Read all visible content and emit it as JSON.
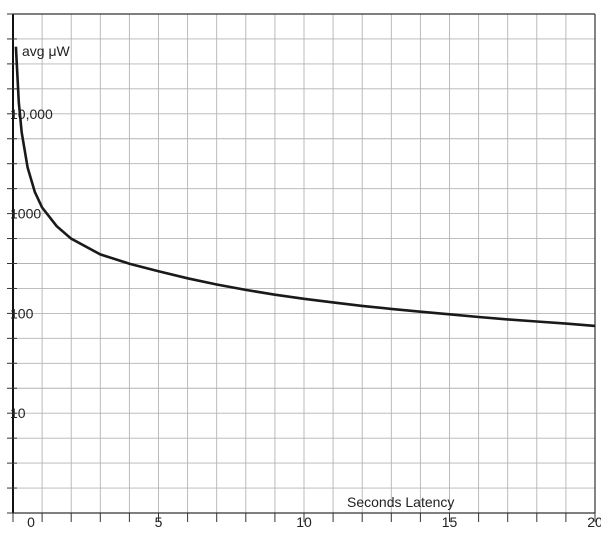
{
  "chart_data": {
    "type": "line",
    "title": "",
    "xlabel": "Seconds Latency",
    "ylabel": "avg μW",
    "xlim": [
      0,
      20
    ],
    "ylim": [
      1,
      100000
    ],
    "yscale": "log",
    "grid": true,
    "x_ticks": [
      0,
      5,
      10,
      15,
      20
    ],
    "x_tick_labels": [
      "0",
      "5",
      "10",
      "15",
      "20"
    ],
    "y_ticks": [
      10,
      100,
      1000,
      10000
    ],
    "y_tick_labels": [
      "10",
      "100",
      "1000",
      "10,000"
    ],
    "colors": {
      "line": "#1a1a1a",
      "grid": "#b4b4b4",
      "axis": "#333333"
    },
    "series": [
      {
        "x": [
          0.1,
          0.2,
          0.3,
          0.5,
          0.75,
          1,
          1.5,
          2,
          3,
          4,
          5,
          6,
          7,
          8,
          9,
          10,
          11,
          12,
          13,
          14,
          15,
          16,
          17,
          18,
          19,
          20
        ],
        "values": [
          47000,
          13000,
          6500,
          2900,
          1650,
          1150,
          750,
          560,
          390,
          315,
          265,
          225,
          195,
          172,
          154,
          140,
          129,
          119,
          111,
          104,
          98,
          92,
          87,
          83,
          79,
          75
        ]
      }
    ]
  }
}
